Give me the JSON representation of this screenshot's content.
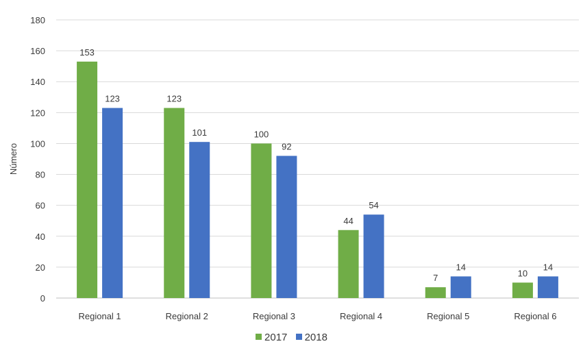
{
  "chart_data": {
    "type": "bar",
    "title": "",
    "xlabel": "",
    "ylabel": "Número",
    "ylim": [
      0,
      180
    ],
    "yticks": [
      0,
      20,
      40,
      60,
      80,
      100,
      120,
      140,
      160,
      180
    ],
    "grid": true,
    "legend_position": "bottom",
    "categories": [
      "Regional 1",
      "Regional 2",
      "Regional 3",
      "Regional 4",
      "Regional 5",
      "Regional 6"
    ],
    "series": [
      {
        "name": "2017",
        "color": "#70ad47",
        "values": [
          153,
          123,
          100,
          44,
          7,
          10
        ]
      },
      {
        "name": "2018",
        "color": "#4472c4",
        "values": [
          123,
          101,
          92,
          54,
          14,
          14
        ]
      }
    ]
  }
}
